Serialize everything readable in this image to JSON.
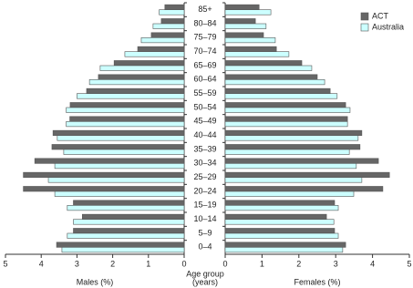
{
  "chart_data": {
    "type": "pyramid",
    "categories": [
      "85+",
      "80–84",
      "75–79",
      "70–74",
      "65–69",
      "60–64",
      "55–59",
      "50–54",
      "45–49",
      "40–44",
      "35–39",
      "30–34",
      "25–29",
      "20–24",
      "15–19",
      "10–14",
      "5–9",
      "0–4"
    ],
    "series": [
      {
        "name": "ACT",
        "color": "#666666",
        "males": [
          0.54,
          0.64,
          0.92,
          1.3,
          1.96,
          2.4,
          2.73,
          3.19,
          3.2,
          3.67,
          3.7,
          4.18,
          4.5,
          4.5,
          3.1,
          2.85,
          3.1,
          3.57
        ],
        "females": [
          0.92,
          0.82,
          1.04,
          1.39,
          2.08,
          2.5,
          2.85,
          3.27,
          3.32,
          3.71,
          3.66,
          4.16,
          4.46,
          4.28,
          2.97,
          2.75,
          2.97,
          3.27
        ]
      },
      {
        "name": "Australia",
        "color": "#ccffff",
        "males": [
          0.7,
          0.87,
          1.2,
          1.66,
          2.35,
          2.65,
          3.0,
          3.3,
          3.3,
          3.55,
          3.37,
          3.62,
          3.8,
          3.62,
          3.27,
          3.1,
          3.27,
          3.42
        ],
        "females": [
          1.24,
          1.11,
          1.36,
          1.73,
          2.35,
          2.7,
          3.04,
          3.39,
          3.32,
          3.61,
          3.37,
          3.56,
          3.71,
          3.49,
          3.07,
          2.95,
          3.07,
          3.19
        ]
      }
    ],
    "xlim": [
      0,
      5
    ],
    "xticks": [
      0,
      1,
      2,
      3,
      4,
      5
    ],
    "left_label": "Males (%)",
    "right_label": "Females (%)",
    "center_label": [
      "Age group",
      "(years)"
    ],
    "legend": "upper right"
  }
}
